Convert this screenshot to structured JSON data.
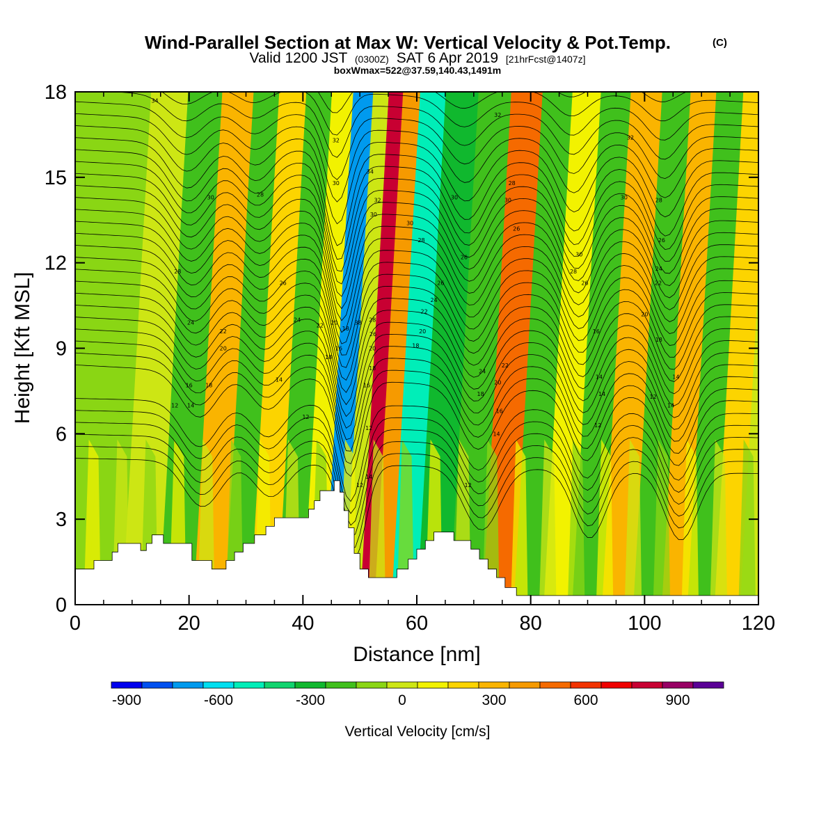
{
  "header": {
    "title": "Wind-Parallel Section at Max W: Vertical Velocity & Pot.Temp.",
    "title_mark": "(C)",
    "valid_prefix": "Valid 1200 JST",
    "valid_utc": "(0300Z)",
    "valid_date": "SAT 6 Apr 2019",
    "forecast_info": "[21hrFcst@1407z]",
    "box_info": "boxWmax=522@37.59,140.43,1491m"
  },
  "chart_data": {
    "type": "heatmap",
    "xlabel": "Distance [nm]",
    "ylabel": "Height [Kft MSL]",
    "xlim": [
      0,
      120
    ],
    "ylim": [
      0,
      18
    ],
    "x_ticks": [
      "0",
      "20",
      "40",
      "60",
      "80",
      "100",
      "120"
    ],
    "y_ticks": [
      "0",
      "3",
      "6",
      "9",
      "12",
      "15",
      "18"
    ],
    "field": "Vertical Velocity [cm/s]",
    "contour_field": "Potential Temperature (thin black lines)",
    "velocity_bands": [
      {
        "x": 1,
        "w": -25
      },
      {
        "x": 6,
        "w": -60
      },
      {
        "x": 13,
        "w": 20
      },
      {
        "x": 19,
        "w": -140
      },
      {
        "x": 25,
        "w": 330
      },
      {
        "x": 30,
        "w": -130
      },
      {
        "x": 34,
        "w": 260
      },
      {
        "x": 39.5,
        "w": -110
      },
      {
        "x": 43,
        "w": 140
      },
      {
        "x": 47,
        "w": -640
      },
      {
        "x": 50,
        "w": 40
      },
      {
        "x": 52.5,
        "w": 880
      },
      {
        "x": 55,
        "w": 420
      },
      {
        "x": 58.5,
        "w": -460
      },
      {
        "x": 64,
        "w": -220
      },
      {
        "x": 70,
        "w": -130
      },
      {
        "x": 75.5,
        "w": 560
      },
      {
        "x": 81,
        "w": -170
      },
      {
        "x": 86,
        "w": 150
      },
      {
        "x": 91,
        "w": -200
      },
      {
        "x": 96.5,
        "w": 340
      },
      {
        "x": 102,
        "w": -180
      },
      {
        "x": 106.5,
        "w": 310
      },
      {
        "x": 111,
        "w": -160
      },
      {
        "x": 116,
        "w": 270
      },
      {
        "x": 120,
        "w": 60
      }
    ],
    "terrain": [
      [
        0,
        1.25
      ],
      [
        3.3,
        1.25
      ],
      [
        3.3,
        1.55
      ],
      [
        6.5,
        1.55
      ],
      [
        6.5,
        1.85
      ],
      [
        7.5,
        1.85
      ],
      [
        7.5,
        2.15
      ],
      [
        11.5,
        2.15
      ],
      [
        11.5,
        1.9
      ],
      [
        12.5,
        1.9
      ],
      [
        12.5,
        2.15
      ],
      [
        13.5,
        2.15
      ],
      [
        13.5,
        2.45
      ],
      [
        15.5,
        2.45
      ],
      [
        15.5,
        2.15
      ],
      [
        20.5,
        2.15
      ],
      [
        20.5,
        1.55
      ],
      [
        24,
        1.55
      ],
      [
        24,
        1.25
      ],
      [
        26.5,
        1.25
      ],
      [
        26.5,
        1.55
      ],
      [
        28,
        1.55
      ],
      [
        28,
        1.85
      ],
      [
        29.5,
        1.85
      ],
      [
        29.5,
        2.15
      ],
      [
        31.5,
        2.15
      ],
      [
        31.5,
        2.45
      ],
      [
        33.5,
        2.45
      ],
      [
        33.5,
        2.75
      ],
      [
        35,
        2.75
      ],
      [
        35,
        3.05
      ],
      [
        41,
        3.05
      ],
      [
        41,
        3.35
      ],
      [
        42,
        3.35
      ],
      [
        42,
        3.65
      ],
      [
        43,
        3.65
      ],
      [
        43,
        4.0
      ],
      [
        45.5,
        4.0
      ],
      [
        45.5,
        4.35
      ],
      [
        46.5,
        4.35
      ],
      [
        46.5,
        3.95
      ],
      [
        47.2,
        3.95
      ],
      [
        47.2,
        3.3
      ],
      [
        48,
        3.3
      ],
      [
        48,
        2.7
      ],
      [
        49,
        2.7
      ],
      [
        49,
        1.8
      ],
      [
        50,
        1.8
      ],
      [
        50,
        1.25
      ],
      [
        51.5,
        1.25
      ],
      [
        51.5,
        0.95
      ],
      [
        56.5,
        0.95
      ],
      [
        56.5,
        1.25
      ],
      [
        58.5,
        1.25
      ],
      [
        58.5,
        1.6
      ],
      [
        60,
        1.6
      ],
      [
        60,
        1.95
      ],
      [
        61.5,
        1.95
      ],
      [
        61.5,
        2.25
      ],
      [
        63,
        2.25
      ],
      [
        63,
        2.55
      ],
      [
        66.5,
        2.55
      ],
      [
        66.5,
        2.25
      ],
      [
        69.5,
        2.25
      ],
      [
        69.5,
        1.95
      ],
      [
        71,
        1.95
      ],
      [
        71,
        1.6
      ],
      [
        72.5,
        1.6
      ],
      [
        72.5,
        1.25
      ],
      [
        74,
        1.25
      ],
      [
        74,
        0.95
      ],
      [
        75.5,
        0.95
      ],
      [
        75.5,
        0.6
      ],
      [
        77.5,
        0.6
      ],
      [
        77.5,
        0.32
      ],
      [
        120,
        0.32
      ]
    ],
    "contour_labels": [
      [
        14,
        17.7,
        "34"
      ],
      [
        23.8,
        14.3,
        "30"
      ],
      [
        32.5,
        14.4,
        "28"
      ],
      [
        18,
        11.7,
        "28"
      ],
      [
        36.5,
        11.3,
        "26"
      ],
      [
        20.3,
        9.9,
        "24"
      ],
      [
        26,
        9.6,
        "22"
      ],
      [
        26,
        9.0,
        "20"
      ],
      [
        39,
        10.0,
        "24"
      ],
      [
        43,
        9.8,
        "22"
      ],
      [
        45.5,
        9.9,
        "20"
      ],
      [
        44.5,
        8.7,
        "18"
      ],
      [
        35.8,
        7.9,
        "14"
      ],
      [
        20,
        7.7,
        "16"
      ],
      [
        23.5,
        7.7,
        "18"
      ],
      [
        17.5,
        7.0,
        "12"
      ],
      [
        20.3,
        7.0,
        "14"
      ],
      [
        40.5,
        6.6,
        "12"
      ],
      [
        45.8,
        16.3,
        "32"
      ],
      [
        45.8,
        14.8,
        "30"
      ],
      [
        47.5,
        9.7,
        "18"
      ],
      [
        46.3,
        9.0,
        "16"
      ],
      [
        49.7,
        9.9,
        "38"
      ],
      [
        51.8,
        15.2,
        "34"
      ],
      [
        53.1,
        14.2,
        "32"
      ],
      [
        52.4,
        13.7,
        "30"
      ],
      [
        52.2,
        10.0,
        "28"
      ],
      [
        52.3,
        9.5,
        "26"
      ],
      [
        52.2,
        9.0,
        "20"
      ],
      [
        52.2,
        8.3,
        "18"
      ],
      [
        51.2,
        7.7,
        "16"
      ],
      [
        51.6,
        6.2,
        "12"
      ],
      [
        50.0,
        4.2,
        "12"
      ],
      [
        51.6,
        4.5,
        "14"
      ],
      [
        58.8,
        13.4,
        "30"
      ],
      [
        60.8,
        12.8,
        "28"
      ],
      [
        66.6,
        14.3,
        "30"
      ],
      [
        64.2,
        11.3,
        "26"
      ],
      [
        63.0,
        10.7,
        "24"
      ],
      [
        61.3,
        10.3,
        "22"
      ],
      [
        61.0,
        9.6,
        "20"
      ],
      [
        59.8,
        9.1,
        "18"
      ],
      [
        74.2,
        17.2,
        "32"
      ],
      [
        76.7,
        14.8,
        "28"
      ],
      [
        76.0,
        14.2,
        "30"
      ],
      [
        77.5,
        13.2,
        "26"
      ],
      [
        68.3,
        12.2,
        "26"
      ],
      [
        71.5,
        8.2,
        "24"
      ],
      [
        75.5,
        8.4,
        "22"
      ],
      [
        74.2,
        7.8,
        "20"
      ],
      [
        71.2,
        7.4,
        "18"
      ],
      [
        74.5,
        6.8,
        "16"
      ],
      [
        74.0,
        6.0,
        "14"
      ],
      [
        69.0,
        4.2,
        "12"
      ],
      [
        97.5,
        16.4,
        "32"
      ],
      [
        88.5,
        12.3,
        "30"
      ],
      [
        87.5,
        11.7,
        "28"
      ],
      [
        89.5,
        11.3,
        "26"
      ],
      [
        96.4,
        14.3,
        "30"
      ],
      [
        102.5,
        14.2,
        "28"
      ],
      [
        103,
        12.8,
        "26"
      ],
      [
        102.5,
        11.8,
        "24"
      ],
      [
        102.4,
        11.3,
        "22"
      ],
      [
        100,
        10.2,
        "20"
      ],
      [
        102.5,
        9.3,
        "18"
      ],
      [
        91.5,
        9.6,
        "16"
      ],
      [
        92,
        8.0,
        "14"
      ],
      [
        92.5,
        7.4,
        "14"
      ],
      [
        91.8,
        6.3,
        "12"
      ],
      [
        105.5,
        8.0,
        "14"
      ],
      [
        101.5,
        7.3,
        "12"
      ],
      [
        104.6,
        7.0,
        "14"
      ]
    ]
  },
  "colorbar": {
    "title": "Vertical Velocity [cm/s]",
    "bins": [
      "#0000ee",
      "#0050f0",
      "#009aee",
      "#00dff0",
      "#00eeb8",
      "#10d46e",
      "#10b82e",
      "#40c01c",
      "#8ad614",
      "#cde614",
      "#f2f200",
      "#fcd400",
      "#fab400",
      "#f69a00",
      "#f56a00",
      "#f23200",
      "#f00000",
      "#c80032",
      "#980064",
      "#5a0096"
    ],
    "bin_start": -900,
    "bin_step": 100,
    "tick_labels": [
      "-900",
      "-600",
      "-300",
      "0",
      "300",
      "600",
      "900"
    ]
  }
}
